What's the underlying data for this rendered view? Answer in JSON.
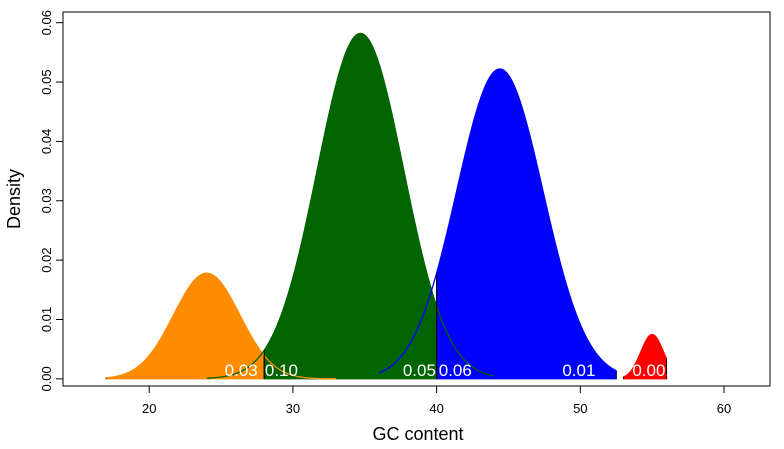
{
  "chart_data": {
    "type": "area",
    "title": "",
    "xlabel": "GC content",
    "ylabel": "Density",
    "xlim": [
      20,
      60
    ],
    "ylim": [
      0,
      0.06
    ],
    "x_ticks": [
      "20",
      "30",
      "40",
      "50",
      "60"
    ],
    "y_ticks": [
      "0.00",
      "0.01",
      "0.02",
      "0.03",
      "0.04",
      "0.05",
      "0.06"
    ],
    "grid": false,
    "legend": "none",
    "series": [
      {
        "color": "#ff8c00",
        "mean": 24.0,
        "sd": 2.3,
        "peak": 0.0178,
        "fill_from": 17.0,
        "fill_to": 28.0,
        "curve_to": 33.0
      },
      {
        "color": "#006400",
        "mean": 34.7,
        "sd": 3.0,
        "peak": 0.0582,
        "fill_from": 28.0,
        "fill_to": 40.0,
        "curve_from": 24.0,
        "curve_to": 44.0
      },
      {
        "color": "#0000ff",
        "mean": 44.4,
        "sd": 3.0,
        "peak": 0.0522,
        "fill_from": 40.0,
        "fill_to": 52.5,
        "curve_from": 36.0
      },
      {
        "color": "#ff0000",
        "mean": 55.0,
        "sd": 0.8,
        "peak": 0.0075,
        "fill_from": 53.0,
        "fill_to": 56.0
      }
    ],
    "annotations": [
      {
        "text": "0.03",
        "x": 26.4,
        "y": 0.0003
      },
      {
        "text": "0.10",
        "x": 29.2,
        "y": 0.0003
      },
      {
        "text": "0.05",
        "x": 38.8,
        "y": 0.0003
      },
      {
        "text": "0.06",
        "x": 41.3,
        "y": 0.0003
      },
      {
        "text": "0.01",
        "x": 49.9,
        "y": 0.0003
      },
      {
        "text": "0.001",
        "x": 55.1,
        "y": 0.0003
      }
    ]
  }
}
